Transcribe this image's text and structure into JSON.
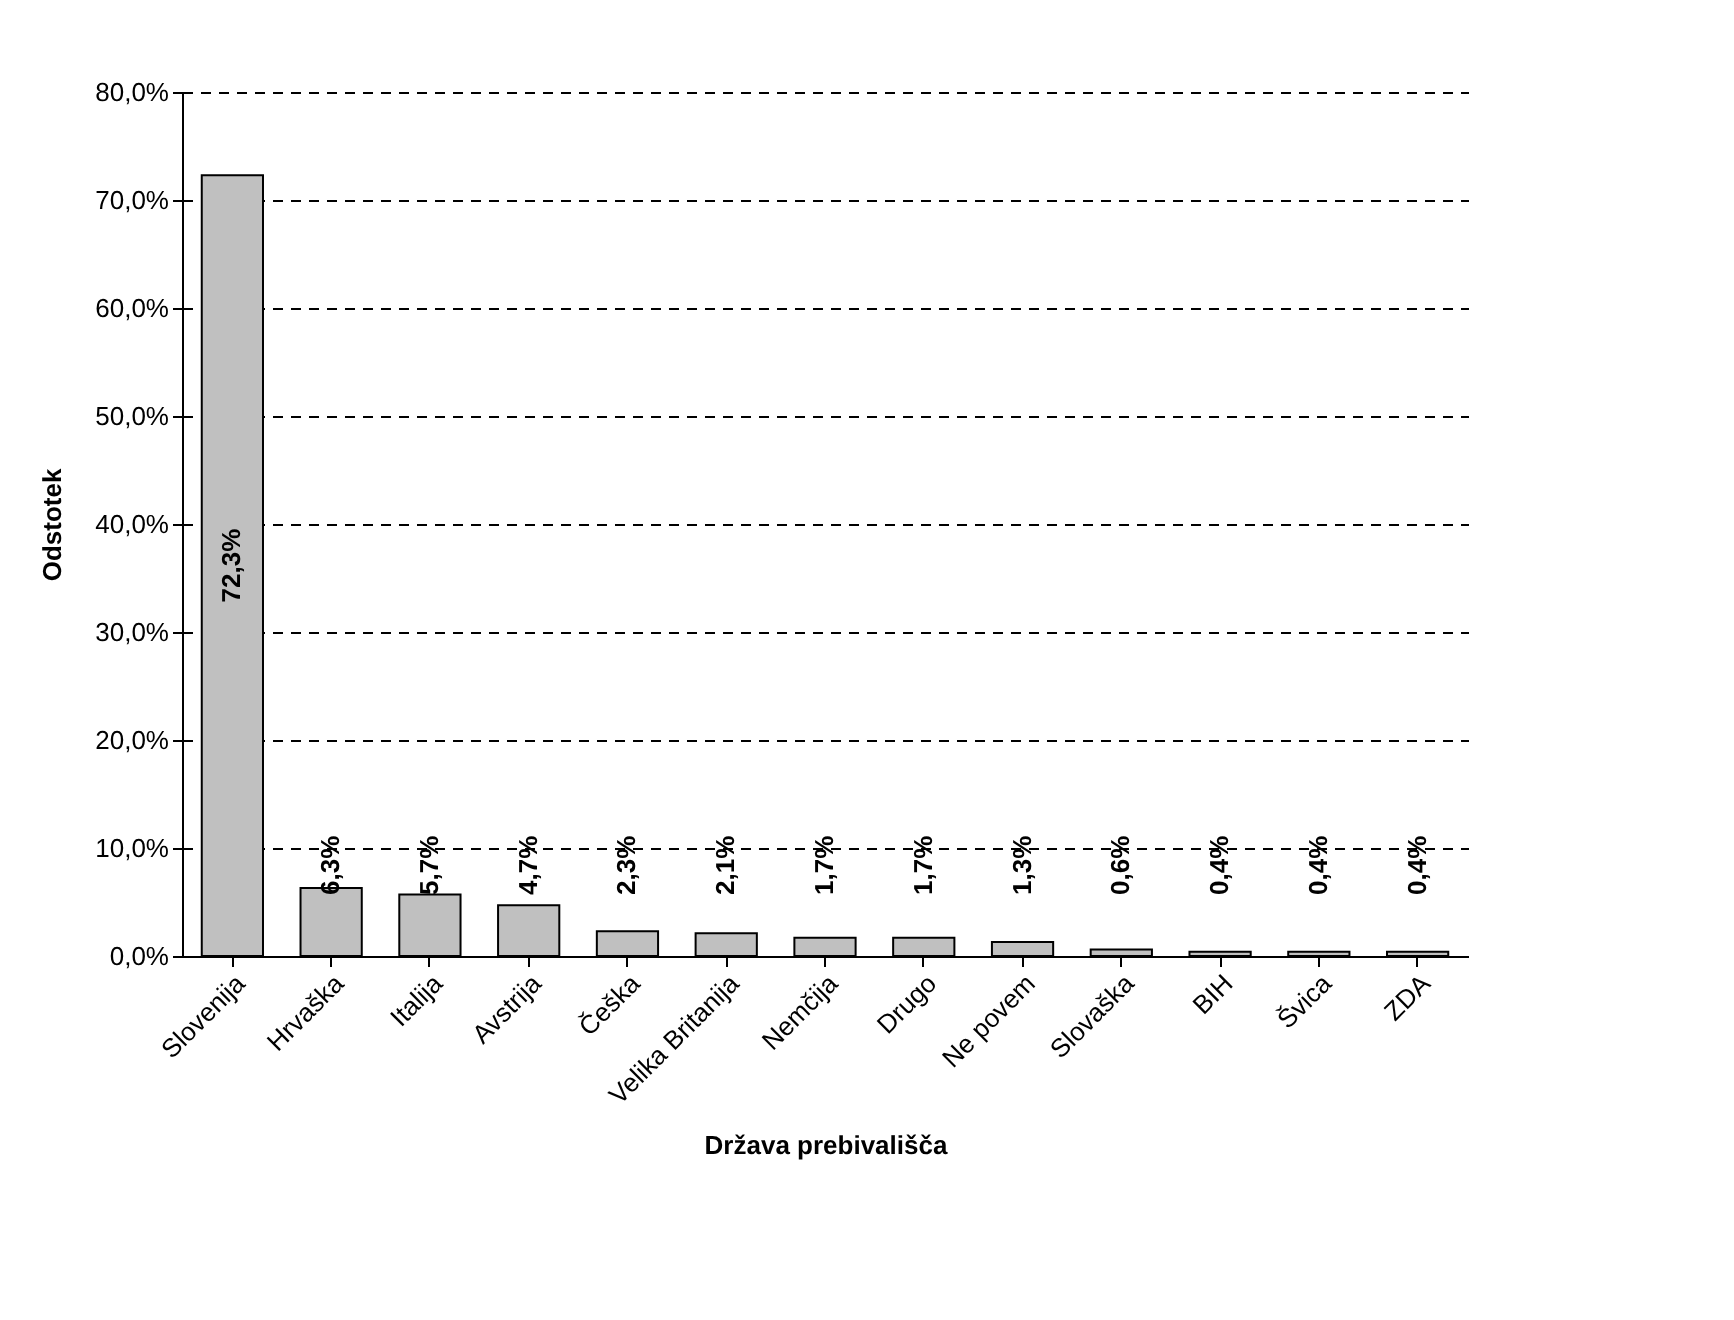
{
  "chart_data": {
    "type": "bar",
    "xlabel": "Država prebivališča",
    "ylabel": "Odstotek",
    "categories": [
      "Slovenija",
      "Hrvaška",
      "Italija",
      "Avstrija",
      "Češka",
      "Velika Britanija",
      "Nemčija",
      "Drugo",
      "Ne povem",
      "Slovaška",
      "BIH",
      "Švica",
      "ZDA"
    ],
    "values": [
      72.3,
      6.3,
      5.7,
      4.7,
      2.3,
      2.1,
      1.7,
      1.7,
      1.3,
      0.6,
      0.4,
      0.4,
      0.4
    ],
    "value_labels": [
      "72,3%",
      "6,3%",
      "5,7%",
      "4,7%",
      "2,3%",
      "2,1%",
      "1,7%",
      "1,7%",
      "1,3%",
      "0,6%",
      "0,4%",
      "0,4%",
      "0,4%"
    ],
    "color": "#c0c0c0",
    "ylim": [
      0,
      80
    ],
    "yticks": [
      {
        "value": 0,
        "label": "0,0%"
      },
      {
        "value": 10,
        "label": "10,0%"
      },
      {
        "value": 20,
        "label": "20,0%"
      },
      {
        "value": 30,
        "label": "30,0%"
      },
      {
        "value": 40,
        "label": "40,0%"
      },
      {
        "value": 50,
        "label": "50,0%"
      },
      {
        "value": 60,
        "label": "60,0%"
      },
      {
        "value": 70,
        "label": "70,0%"
      },
      {
        "value": 80,
        "label": "80,0%"
      }
    ],
    "grid": "y",
    "line_style": "dashed"
  }
}
